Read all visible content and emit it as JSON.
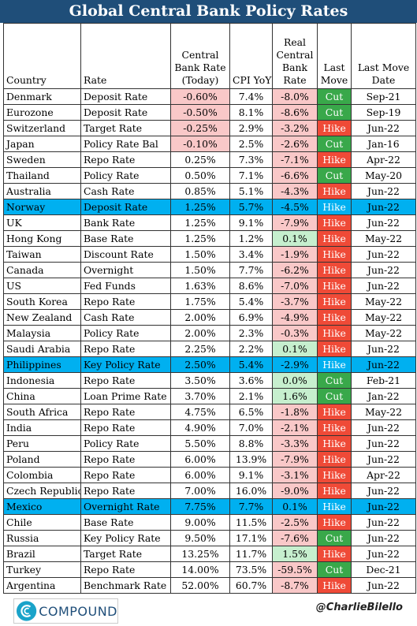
{
  "title": "Global Central Bank Policy Rates",
  "headers": [
    "Country",
    "Rate",
    "Central Bank Rate (Today)",
    "CPI YoY",
    "Real Central Bank Rate",
    "Last Move",
    "Last Move Date"
  ],
  "rows": [
    {
      "country": "Denmark",
      "rate": "Deposit Rate",
      "cb": "-0.60%",
      "cpi": "7.4%",
      "real": "-8.0%",
      "move": "Cut",
      "date": "Sep-21"
    },
    {
      "country": "Eurozone",
      "rate": "Deposit Rate",
      "cb": "-0.50%",
      "cpi": "8.1%",
      "real": "-8.6%",
      "move": "Cut",
      "date": "Sep-19"
    },
    {
      "country": "Switzerland",
      "rate": "Target Rate",
      "cb": "-0.25%",
      "cpi": "2.9%",
      "real": "-3.2%",
      "move": "Hike",
      "date": "Jun-22"
    },
    {
      "country": "Japan",
      "rate": "Policy Rate Bal",
      "cb": "-0.10%",
      "cpi": "2.5%",
      "real": "-2.6%",
      "move": "Cut",
      "date": "Jan-16"
    },
    {
      "country": "Sweden",
      "rate": "Repo Rate",
      "cb": "0.25%",
      "cpi": "7.3%",
      "real": "-7.1%",
      "move": "Hike",
      "date": "Apr-22"
    },
    {
      "country": "Thailand",
      "rate": "Policy Rate",
      "cb": "0.50%",
      "cpi": "7.1%",
      "real": "-6.6%",
      "move": "Cut",
      "date": "May-20"
    },
    {
      "country": "Australia",
      "rate": "Cash Rate",
      "cb": "0.85%",
      "cpi": "5.1%",
      "real": "-4.3%",
      "move": "Hike",
      "date": "Jun-22"
    },
    {
      "country": "Norway",
      "rate": "Deposit Rate",
      "cb": "1.25%",
      "cpi": "5.7%",
      "real": "-4.5%",
      "move": "Hike",
      "date": "Jun-22",
      "highlight": true
    },
    {
      "country": "UK",
      "rate": "Bank Rate",
      "cb": "1.25%",
      "cpi": "9.1%",
      "real": "-7.9%",
      "move": "Hike",
      "date": "Jun-22"
    },
    {
      "country": "Hong Kong",
      "rate": "Base Rate",
      "cb": "1.25%",
      "cpi": "1.2%",
      "real": "0.1%",
      "move": "Hike",
      "date": "May-22"
    },
    {
      "country": "Taiwan",
      "rate": "Discount Rate",
      "cb": "1.50%",
      "cpi": "3.4%",
      "real": "-1.9%",
      "move": "Hike",
      "date": "Jun-22"
    },
    {
      "country": "Canada",
      "rate": "Overnight",
      "cb": "1.50%",
      "cpi": "7.7%",
      "real": "-6.2%",
      "move": "Hike",
      "date": "Jun-22"
    },
    {
      "country": "US",
      "rate": "Fed Funds",
      "cb": "1.63%",
      "cpi": "8.6%",
      "real": "-7.0%",
      "move": "Hike",
      "date": "Jun-22"
    },
    {
      "country": "South Korea",
      "rate": "Repo Rate",
      "cb": "1.75%",
      "cpi": "5.4%",
      "real": "-3.7%",
      "move": "Hike",
      "date": "May-22"
    },
    {
      "country": "New Zealand",
      "rate": "Cash Rate",
      "cb": "2.00%",
      "cpi": "6.9%",
      "real": "-4.9%",
      "move": "Hike",
      "date": "May-22"
    },
    {
      "country": "Malaysia",
      "rate": "Policy Rate",
      "cb": "2.00%",
      "cpi": "2.3%",
      "real": "-0.3%",
      "move": "Hike",
      "date": "May-22"
    },
    {
      "country": "Saudi Arabia",
      "rate": "Repo Rate",
      "cb": "2.25%",
      "cpi": "2.2%",
      "real": "0.1%",
      "move": "Hike",
      "date": "Jun-22"
    },
    {
      "country": "Philippines",
      "rate": "Key Policy Rate",
      "cb": "2.50%",
      "cpi": "5.4%",
      "real": "-2.9%",
      "move": "Hike",
      "date": "Jun-22",
      "highlight": true
    },
    {
      "country": "Indonesia",
      "rate": "Repo Rate",
      "cb": "3.50%",
      "cpi": "3.6%",
      "real": "0.0%",
      "move": "Cut",
      "date": "Feb-21"
    },
    {
      "country": "China",
      "rate": "Loan Prime Rate",
      "cb": "3.70%",
      "cpi": "2.1%",
      "real": "1.6%",
      "move": "Cut",
      "date": "Jan-22"
    },
    {
      "country": "South Africa",
      "rate": "Repo Rate",
      "cb": "4.75%",
      "cpi": "6.5%",
      "real": "-1.8%",
      "move": "Hike",
      "date": "May-22"
    },
    {
      "country": "India",
      "rate": "Repo Rate",
      "cb": "4.90%",
      "cpi": "7.0%",
      "real": "-2.1%",
      "move": "Hike",
      "date": "Jun-22"
    },
    {
      "country": "Peru",
      "rate": "Policy Rate",
      "cb": "5.50%",
      "cpi": "8.8%",
      "real": "-3.3%",
      "move": "Hike",
      "date": "Jun-22"
    },
    {
      "country": "Poland",
      "rate": "Repo Rate",
      "cb": "6.00%",
      "cpi": "13.9%",
      "real": "-7.9%",
      "move": "Hike",
      "date": "Jun-22"
    },
    {
      "country": "Colombia",
      "rate": "Repo Rate",
      "cb": "6.00%",
      "cpi": "9.1%",
      "real": "-3.1%",
      "move": "Hike",
      "date": "Apr-22"
    },
    {
      "country": "Czech Republic",
      "rate": "Repo Rate",
      "cb": "7.00%",
      "cpi": "16.0%",
      "real": "-9.0%",
      "move": "Hike",
      "date": "Jun-22"
    },
    {
      "country": "Mexico",
      "rate": "Overnight Rate",
      "cb": "7.75%",
      "cpi": "7.7%",
      "real": "0.1%",
      "move": "Hike",
      "date": "Jun-22",
      "highlight": true
    },
    {
      "country": "Chile",
      "rate": "Base Rate",
      "cb": "9.00%",
      "cpi": "11.5%",
      "real": "-2.5%",
      "move": "Hike",
      "date": "Jun-22"
    },
    {
      "country": "Russia",
      "rate": "Key Policy Rate",
      "cb": "9.50%",
      "cpi": "17.1%",
      "real": "-7.6%",
      "move": "Cut",
      "date": "Jun-22"
    },
    {
      "country": "Brazil",
      "rate": "Target Rate",
      "cb": "13.25%",
      "cpi": "11.7%",
      "real": "1.5%",
      "move": "Hike",
      "date": "Jun-22"
    },
    {
      "country": "Turkey",
      "rate": "Repo Rate",
      "cb": "14.00%",
      "cpi": "73.5%",
      "real": "-59.5%",
      "move": "Cut",
      "date": "Dec-21"
    },
    {
      "country": "Argentina",
      "rate": "Benchmark Rate",
      "cb": "52.00%",
      "cpi": "60.7%",
      "real": "-8.7%",
      "move": "Hike",
      "date": "Jun-22"
    }
  ],
  "colors": {
    "title_bg": "#1f4e79",
    "highlight": "#00b0f0",
    "hike": "#ef4a37",
    "cut": "#39a84a",
    "negative": "#f9c8c8",
    "positive": "#c6efce"
  },
  "footer": {
    "logo_text": "COMPOUND",
    "logo_icon": "compound-logo-icon",
    "handle": "@CharlieBilello"
  }
}
